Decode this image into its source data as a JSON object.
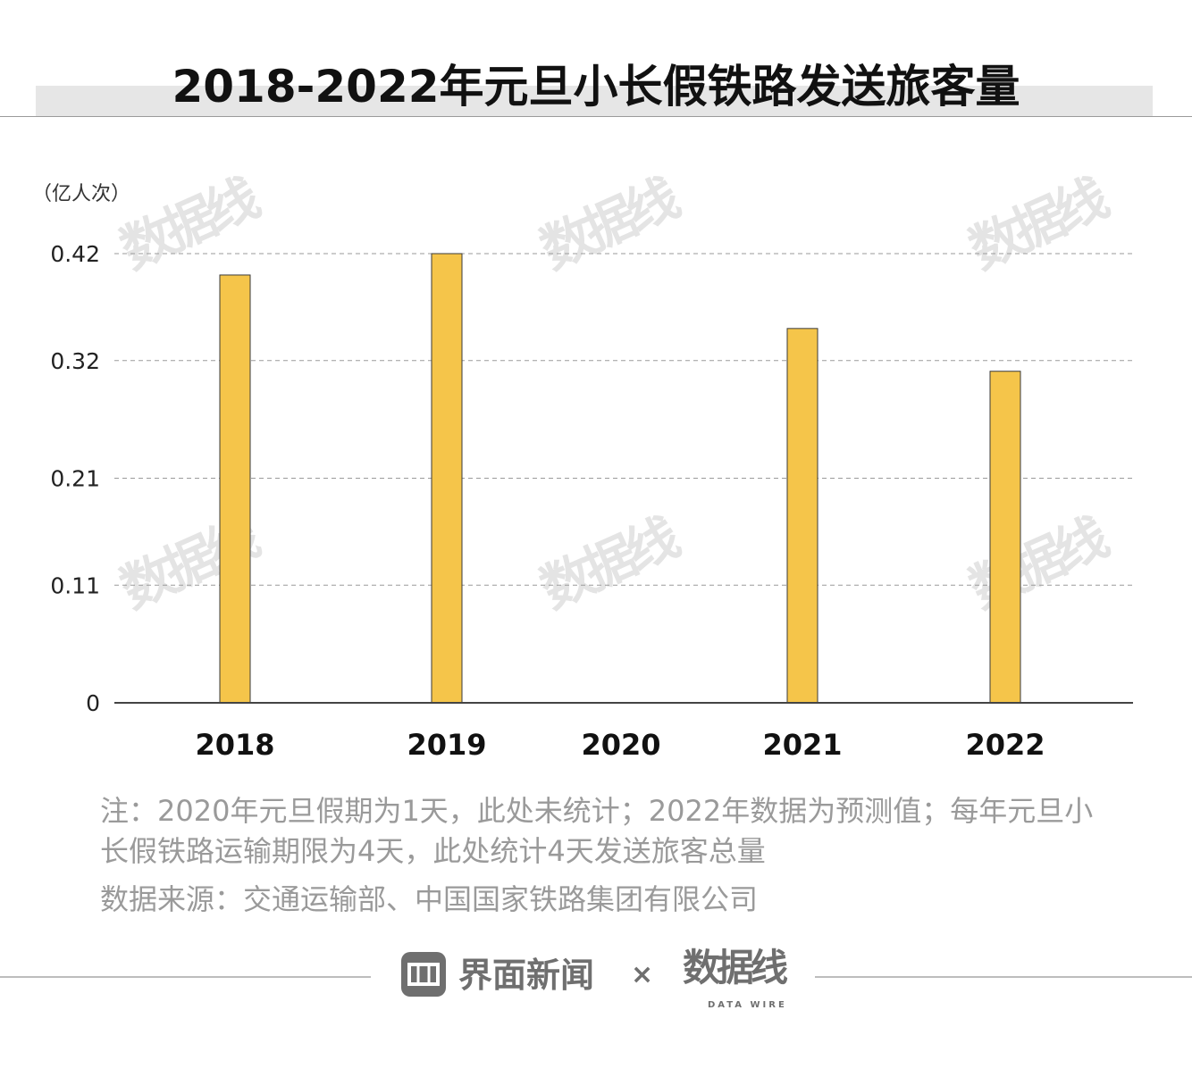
{
  "chart_data": {
    "type": "bar",
    "title": "2018-2022年元旦小长假铁路发送旅客量",
    "unit_label": "（亿人次）",
    "categories": [
      "2018",
      "2019",
      "2020",
      "2021",
      "2022"
    ],
    "values": [
      0.4,
      0.42,
      null,
      0.35,
      0.31
    ],
    "yticks": [
      "0",
      "0.11",
      "0.21",
      "0.32",
      "0.42"
    ],
    "ylim": [
      0,
      0.42
    ],
    "grid": true,
    "bar_color": "#f5c54a",
    "bar_stroke": "#3a3a3a"
  },
  "notes": {
    "line1": "注：2020年元旦假期为1天，此处未统计；2022年数据为预测值；每年元旦小",
    "line2": "长假铁路运输期限为4天，此处统计4天发送旅客总量",
    "source": "数据来源：交通运输部、中国国家铁路集团有限公司"
  },
  "footer": {
    "brand": "界面新闻",
    "times": "×",
    "partner": "数据线",
    "partner_sub": "DATA WIRE",
    "logo_icon": "jiemian-logo-icon"
  },
  "watermark": {
    "text": "数据线",
    "sub": "DATA WIRE"
  }
}
